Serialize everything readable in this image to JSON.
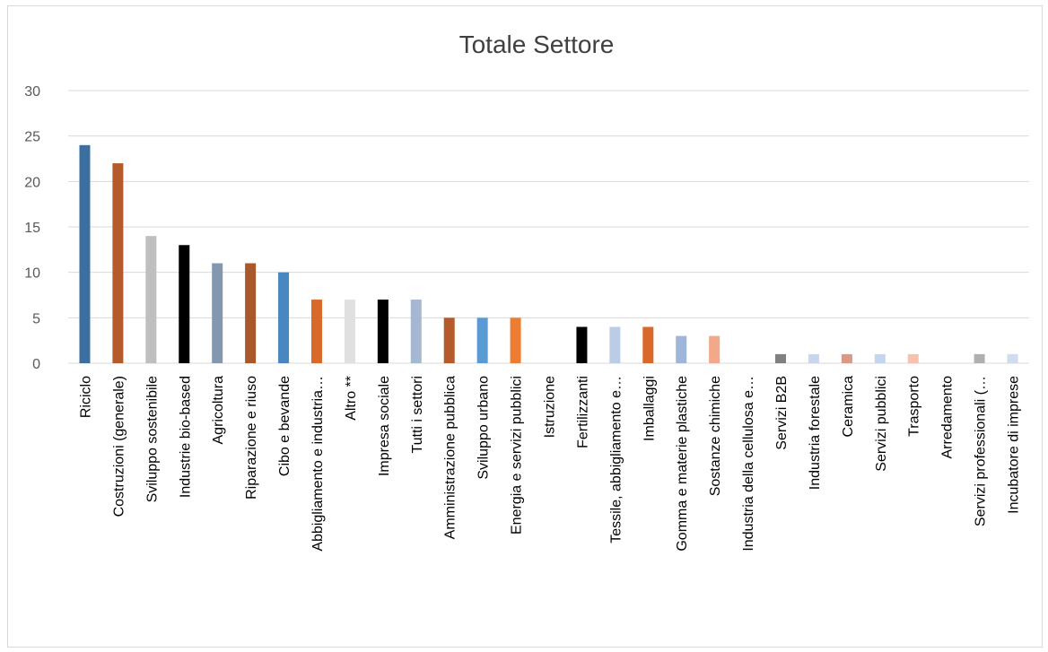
{
  "chart_data": {
    "type": "bar",
    "title": "Totale Settore",
    "xlabel": "",
    "ylabel": "",
    "ylim": [
      0,
      30
    ],
    "yticks": [
      "0",
      "5",
      "10",
      "15",
      "20",
      "25",
      "30"
    ],
    "grid": true,
    "legend": "none",
    "categories": [
      "Riciclo",
      "Costruzioni (generale)",
      "Sviluppo sostenibile",
      "Industrie bio-based",
      "Agricoltura",
      "Riparazione e riuso",
      "Cibo e bevande",
      "Abbigliamento e industria…",
      "Altro **",
      "Impresa sociale",
      "Tutti i settori",
      "Amministrazione pubblica",
      "Sviluppo urbano",
      "Energia e servizi pubblici",
      "Istruzione",
      "Fertilizzanti",
      "Tessile, abbigliamento e…",
      "Imballaggi",
      "Gomma e materie plastiche",
      "Sostanze chimiche",
      "Industria della cellulosa e…",
      "Servizi B2B",
      "Industria forestale",
      "Ceramica",
      "Servizi pubblici",
      "Trasporto",
      "Arredamento",
      "Servizi professionali (…",
      "Incubatore di imprese"
    ],
    "values": [
      24,
      22,
      14,
      13,
      11,
      11,
      10,
      7,
      7,
      7,
      7,
      5,
      5,
      5,
      0,
      4,
      4,
      4,
      3,
      3,
      0,
      1,
      1,
      1,
      1,
      1,
      0,
      1,
      1
    ],
    "colors": [
      "#3b6fa0",
      "#b55a2a",
      "#bfbfbf",
      "#000000",
      "#8497b0",
      "#a9582b",
      "#4a86c0",
      "#d9692a",
      "#e0e0e0",
      "#000000",
      "#a6b7d1",
      "#b55a2a",
      "#5b9bd5",
      "#ed7d31",
      "#ffffff",
      "#000000",
      "#bccbe6",
      "#d9692a",
      "#9fb6d9",
      "#f1a98a",
      "#ffffff",
      "#808080",
      "#c9d7ee",
      "#d99a85",
      "#c5d5ee",
      "#f4c2ad",
      "#ffffff",
      "#b0b0b0",
      "#cfdcf0"
    ],
    "grid_color": "#d9d9d9"
  }
}
